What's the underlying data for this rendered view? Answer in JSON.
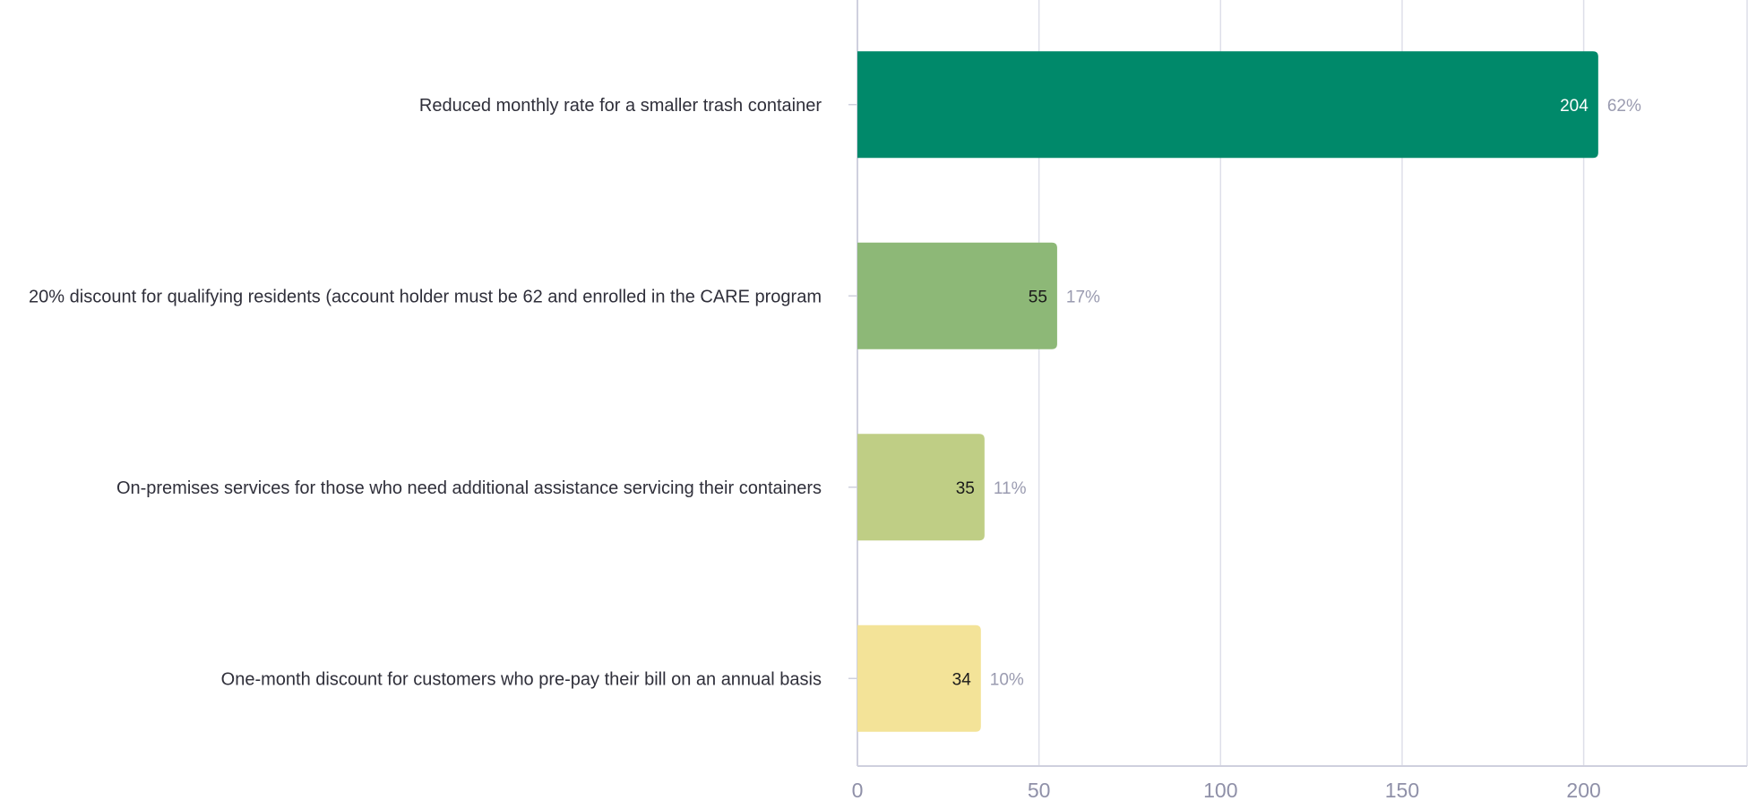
{
  "chart_data": {
    "type": "bar",
    "orientation": "horizontal",
    "title": "",
    "xlabel": "",
    "ylabel": "",
    "categories": [
      "Reduced monthly rate for a smaller trash container",
      "20% discount for qualifying residents (account holder must be 62 and enrolled in the CARE program",
      "On-premises services for those who need additional assistance servicing their containers",
      "One-month discount for customers who pre-pay their bill on an annual basis"
    ],
    "values": [
      204,
      55,
      35,
      34
    ],
    "percent_labels": [
      "62%",
      "17%",
      "11%",
      "10%"
    ],
    "bar_colors": [
      "#00896a",
      "#8db877",
      "#bfce85",
      "#f3e398"
    ],
    "value_label_colors": [
      "#ffffff",
      "#1a1a1a",
      "#1a1a1a",
      "#1a1a1a"
    ],
    "xlim": [
      0,
      245
    ],
    "xticks": [
      0,
      50,
      100,
      150,
      200
    ],
    "grid": true,
    "legend": "none"
  }
}
